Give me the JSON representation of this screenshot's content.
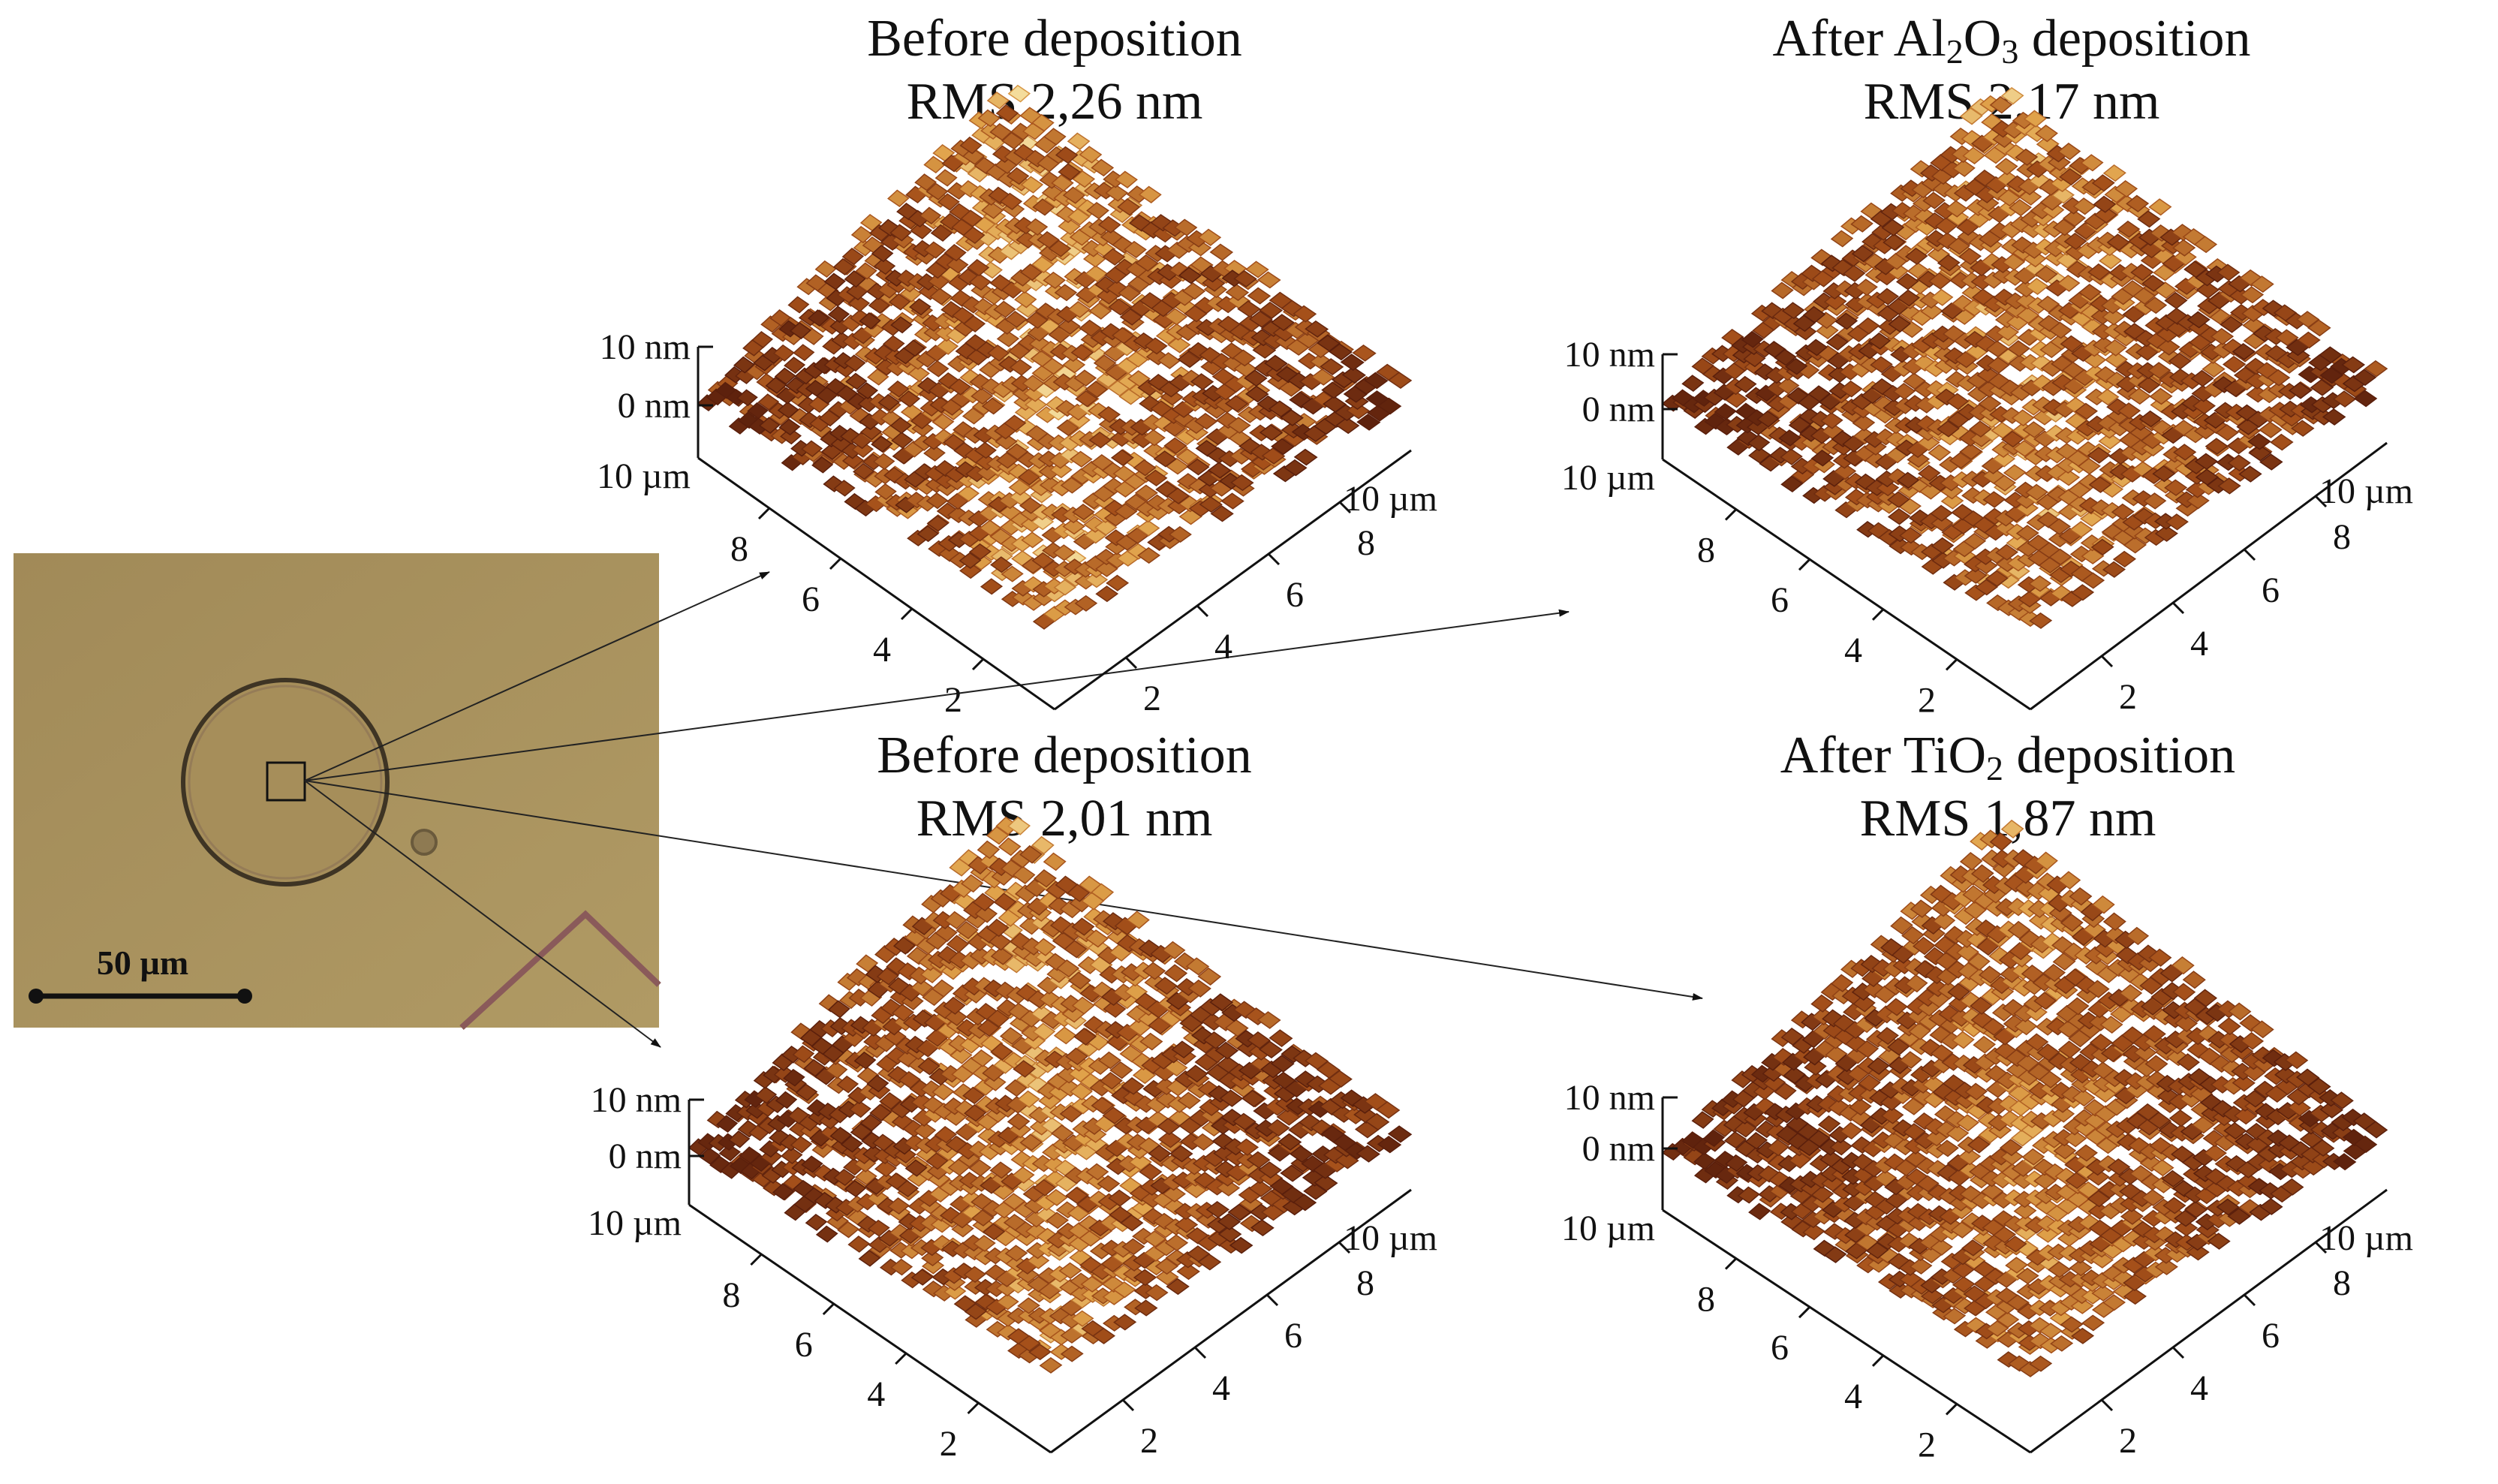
{
  "colors": {
    "background": "#ffffff",
    "micrograph": "#a68e5a",
    "surface_dark": "#5a1f0c",
    "surface_mid": "#a5501a",
    "surface_light": "#e0a24a",
    "surface_highlight": "#f4dc9c",
    "axis": "#111111"
  },
  "micrograph": {
    "scale_bar_label": "50 µm"
  },
  "panels": [
    {
      "title": "Before deposition",
      "title_prefix": "",
      "title_suffix": "",
      "rms": "RMS 2,26 nm",
      "z_top": "10 nm",
      "z_zero": "0 nm",
      "left_edge_label": "10 µm",
      "right_edge_label": "10 µm",
      "ticks_left": [
        "8",
        "6",
        "4",
        "2"
      ],
      "ticks_right": [
        "8",
        "6",
        "4",
        "2"
      ],
      "roughness": 0.55
    },
    {
      "title": "",
      "title_prefix": "After Al",
      "title_mid": "O",
      "title_suffix": " deposition",
      "sub1": "2",
      "sub2": "3",
      "rms": "RMS 2,17 nm",
      "z_top": "10 nm",
      "z_zero": "0 nm",
      "left_edge_label": "10 µm",
      "right_edge_label": "10 µm",
      "ticks_left": [
        "8",
        "6",
        "4",
        "2"
      ],
      "ticks_right": [
        "8",
        "6",
        "4",
        "2"
      ],
      "roughness": 0.5
    },
    {
      "title": "Before deposition",
      "title_prefix": "",
      "title_suffix": "",
      "rms": "RMS 2,01 nm",
      "z_top": "10 nm",
      "z_zero": "0 nm",
      "left_edge_label": "10 µm",
      "right_edge_label": "10 µm",
      "ticks_left": [
        "8",
        "6",
        "4",
        "2"
      ],
      "ticks_right": [
        "8",
        "6",
        "4",
        "2"
      ],
      "roughness": 0.48
    },
    {
      "title": "",
      "title_prefix": "After TiO",
      "title_suffix": " deposition",
      "sub1": "2",
      "rms": "RMS 1,87 nm",
      "z_top": "10 nm",
      "z_zero": "0 nm",
      "left_edge_label": "10 µm",
      "right_edge_label": "10 µm",
      "ticks_left": [
        "8",
        "6",
        "4",
        "2"
      ],
      "ticks_right": [
        "8",
        "6",
        "4",
        "2"
      ],
      "roughness": 0.42
    }
  ]
}
